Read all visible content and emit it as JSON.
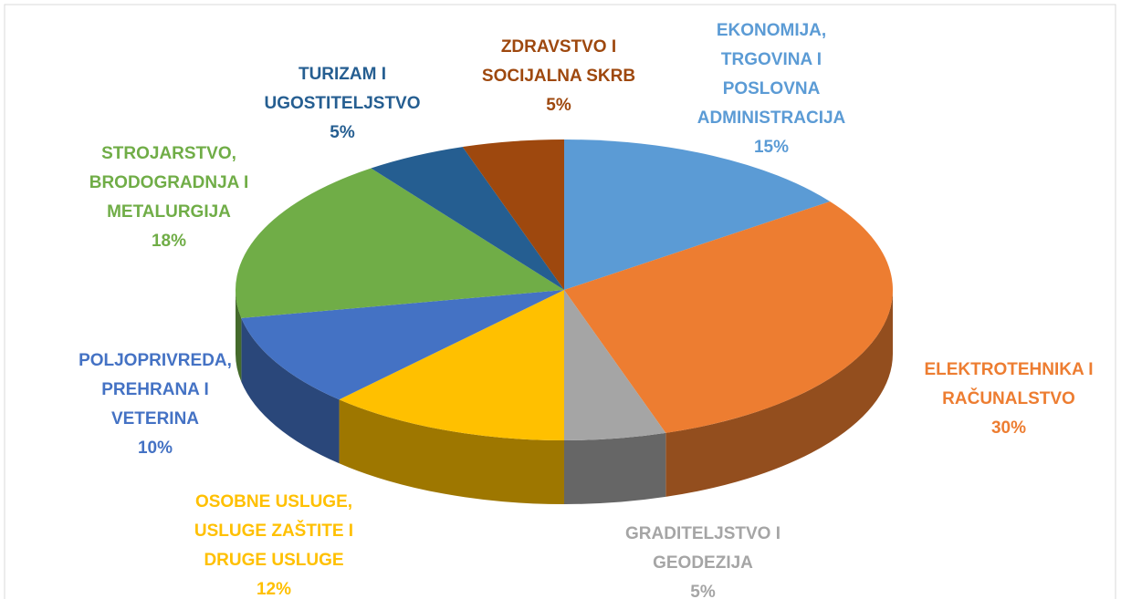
{
  "chart_data": {
    "type": "pie3d",
    "categories": [
      "EKONOMIJA, TRGOVINA I POSLOVNA ADMINISTRACIJA",
      "ELEKTROTEHNIKA I RAČUNALSTVO",
      "GRADITELJSTVO I GEODEZIJA",
      "OSOBNE USLUGE, USLUGE ZAŠTITE I DRUGE USLUGE",
      "POLJOPRIVREDA, PREHRANA I VETERINA",
      "STROJARSTVO, BRODOGRADNJA I METALURGIJA",
      "TURIZAM I UGOSTITELJSTVO",
      "ZDRAVSTVO I SOCIJALNA SKRB"
    ],
    "values": [
      15,
      30,
      5,
      12,
      10,
      18,
      5,
      5
    ],
    "value_labels": [
      "15%",
      "30%",
      "5%",
      "12%",
      "10%",
      "18%",
      "5%",
      "5%"
    ],
    "colors": [
      "#5b9bd5",
      "#ed7d31",
      "#a5a5a5",
      "#ffc000",
      "#4472c4",
      "#70ad47",
      "#255e91",
      "#9e480e"
    ]
  }
}
